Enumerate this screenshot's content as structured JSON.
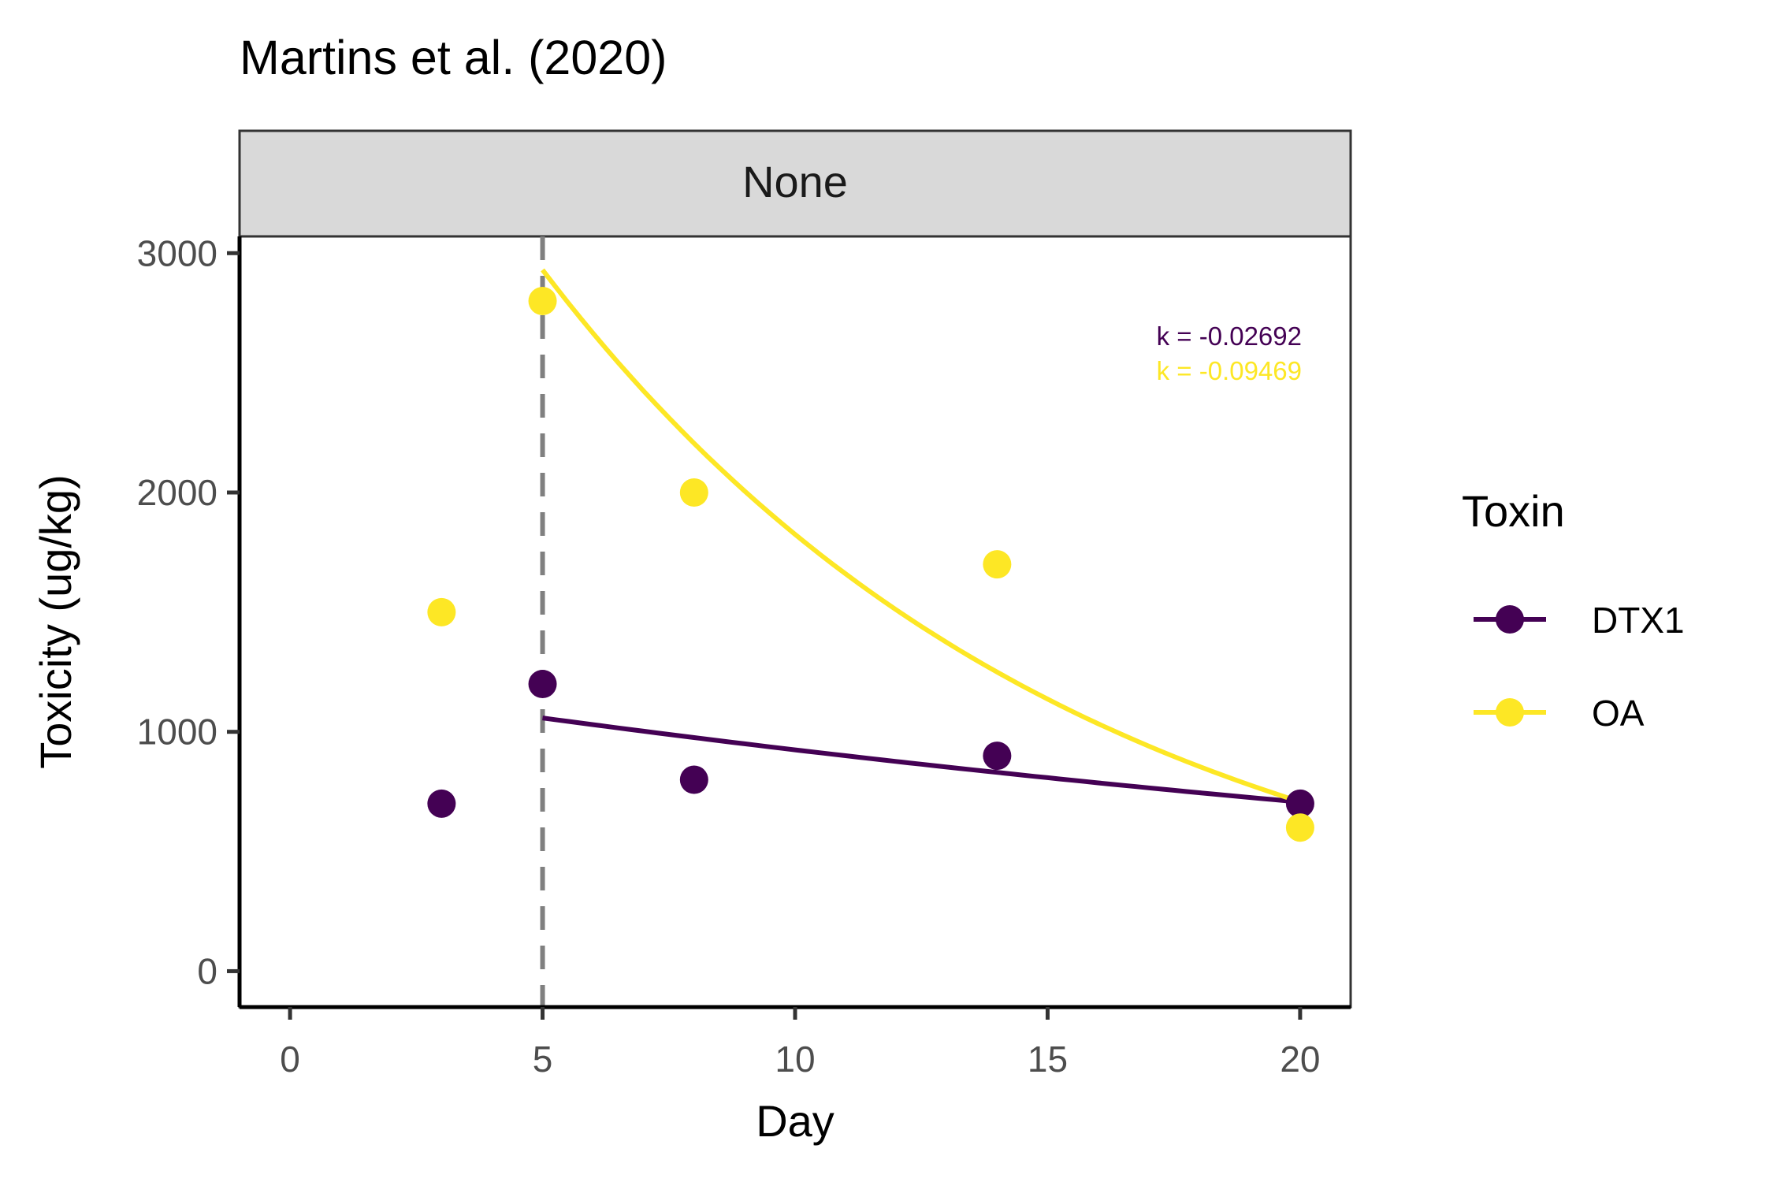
{
  "chart_data": {
    "type": "scatter",
    "title": "Martins et al. (2020)",
    "facet_label": "None",
    "xlabel": "Day",
    "ylabel": "Toxicity (ug/kg)",
    "xlim": [
      -1,
      21
    ],
    "ylim": [
      -150,
      3070
    ],
    "x_ticks": [
      0,
      5,
      10,
      15,
      20
    ],
    "y_ticks": [
      0,
      1000,
      2000,
      3000
    ],
    "grid": false,
    "reference_line": {
      "x": 5,
      "style": "dashed",
      "color": "#808080"
    },
    "legend": {
      "title": "Toxin",
      "position": "right",
      "entries": [
        "DTX1",
        "OA"
      ]
    },
    "series": [
      {
        "name": "DTX1",
        "color": "#440154",
        "points": [
          {
            "x": 3,
            "y": 700
          },
          {
            "x": 5,
            "y": 1200
          },
          {
            "x": 8,
            "y": 800
          },
          {
            "x": 14,
            "y": 900
          },
          {
            "x": 20,
            "y": 700
          }
        ],
        "fit": {
          "x_start": 5,
          "x_end": 20,
          "y_at_start": 1058,
          "k": -0.02692
        },
        "annotation": "k = -0.02692"
      },
      {
        "name": "OA",
        "color": "#FDE725",
        "points": [
          {
            "x": 3,
            "y": 1500
          },
          {
            "x": 5,
            "y": 2800
          },
          {
            "x": 8,
            "y": 2000
          },
          {
            "x": 14,
            "y": 1700
          },
          {
            "x": 20,
            "y": 600
          }
        ],
        "fit": {
          "x_start": 5,
          "x_end": 20,
          "y_at_start": 2930,
          "k": -0.09469
        },
        "annotation": "k = -0.09469"
      }
    ]
  }
}
